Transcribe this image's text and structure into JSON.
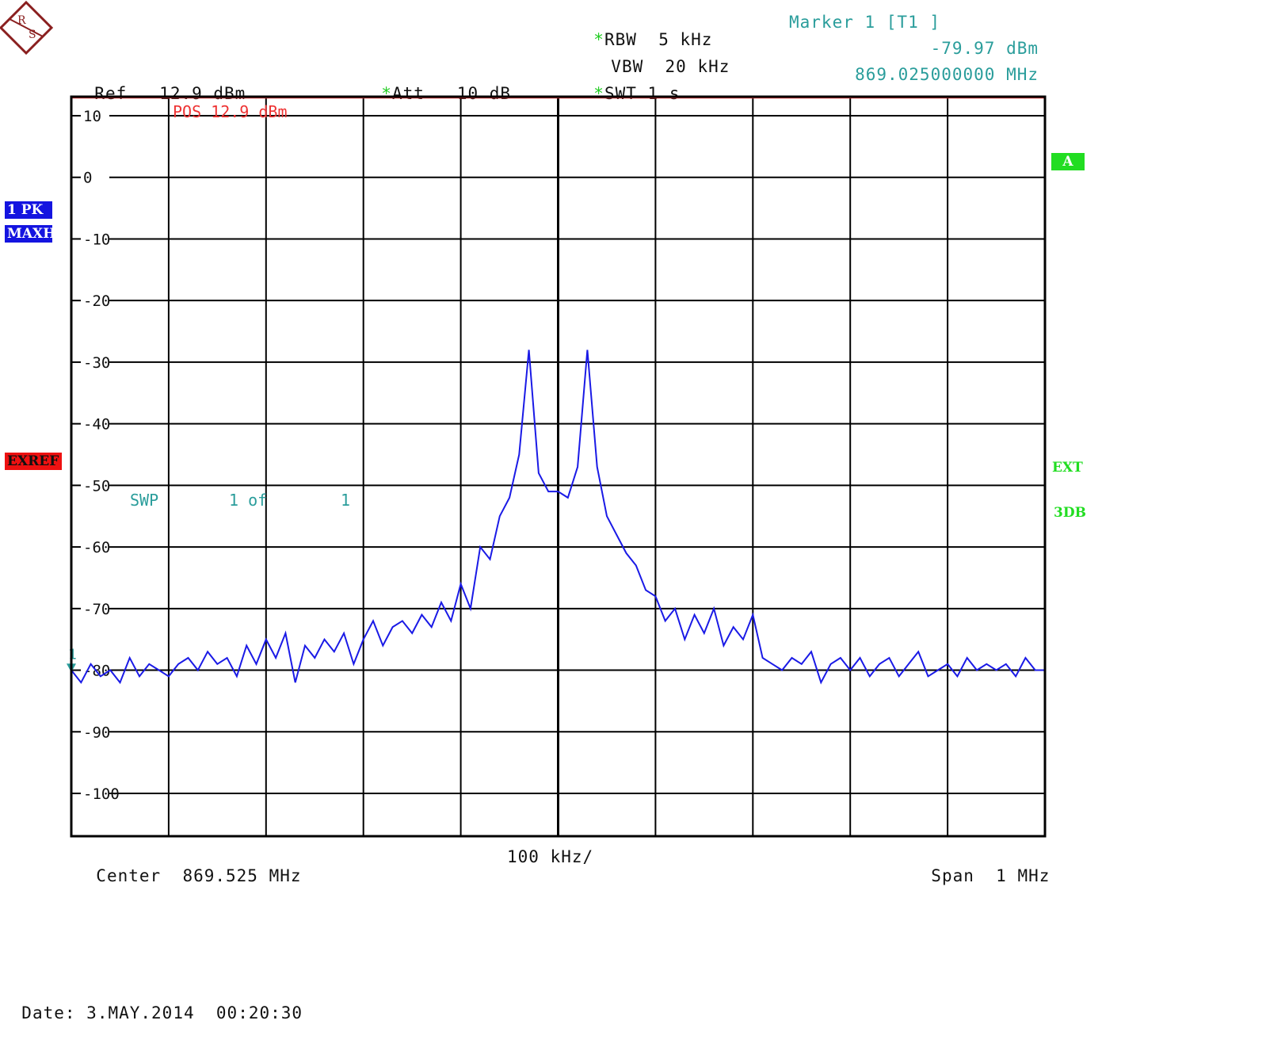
{
  "header": {
    "rbw_label": "RBW",
    "rbw_value": "5 kHz",
    "vbw_label": "VBW",
    "vbw_value": "20 kHz",
    "swt_label": "SWT",
    "swt_value": "1 s",
    "ref_label": "Ref",
    "ref_value": "12.9 dBm",
    "att_label": "Att",
    "att_value": "10 dB",
    "marker_title": "Marker 1 [T1 ]",
    "marker_level": "-79.97 dBm",
    "marker_freq": "869.025000000 MHz"
  },
  "side_labels": {
    "trace_detector": "1 PK",
    "trace_mode": "MAXH",
    "exref": "EXREF",
    "trace_a": "A",
    "ext": "EXT",
    "db3": "3DB"
  },
  "plot_annotations": {
    "pos_line": "POS 12.9 dBm",
    "sweep_label": "SWP",
    "sweep_count": "1 of",
    "sweep_total": "1",
    "marker_number": "1"
  },
  "footer": {
    "center_label": "Center",
    "center_value": "869.525 MHz",
    "div_value": "100 kHz/",
    "span_label": "Span",
    "span_value": "1 MHz",
    "date_label": "Date:",
    "date_value": "3.MAY.2014",
    "time_value": "00:20:30"
  },
  "colors": {
    "trace": "#1a1ae6",
    "grid": "#000000",
    "pos_line": "#ee3333",
    "marker": "#2a9d9b",
    "annotation": "#2a9d9b"
  },
  "chart_data": {
    "type": "line",
    "x_unit": "MHz",
    "y_unit": "dBm",
    "xlim": [
      869.025,
      870.025
    ],
    "ylim": [
      -108,
      13
    ],
    "y_ticks": [
      10,
      0,
      -10,
      -20,
      -30,
      -40,
      -50,
      -60,
      -70,
      -80,
      -90,
      -100
    ],
    "x_divisions": 10,
    "grid": true,
    "ref_level": 12.9,
    "marker": {
      "x": 869.025,
      "y": -79.97
    },
    "series": [
      {
        "x": [
          869.025,
          869.035,
          869.045,
          869.055,
          869.065,
          869.075,
          869.085,
          869.095,
          869.105,
          869.115,
          869.125,
          869.135,
          869.145,
          869.155,
          869.165,
          869.175,
          869.185,
          869.195,
          869.205,
          869.215,
          869.225,
          869.235,
          869.245,
          869.255,
          869.265,
          869.275,
          869.285,
          869.295,
          869.305,
          869.315,
          869.325,
          869.335,
          869.345,
          869.355,
          869.365,
          869.375,
          869.385,
          869.395,
          869.405,
          869.415,
          869.425,
          869.435,
          869.445,
          869.455,
          869.465,
          869.475,
          869.485,
          869.495,
          869.505,
          869.515,
          869.525,
          869.535,
          869.545,
          869.555,
          869.565,
          869.575,
          869.585,
          869.595,
          869.605,
          869.615,
          869.625,
          869.635,
          869.645,
          869.655,
          869.665,
          869.675,
          869.685,
          869.695,
          869.705,
          869.715,
          869.725,
          869.735,
          869.745,
          869.755,
          869.765,
          869.775,
          869.785,
          869.795,
          869.805,
          869.815,
          869.825,
          869.835,
          869.845,
          869.855,
          869.865,
          869.875,
          869.885,
          869.895,
          869.905,
          869.915,
          869.925,
          869.935,
          869.945,
          869.955,
          869.965,
          869.975,
          869.985,
          869.995,
          870.005,
          870.015,
          870.025
        ],
        "y": [
          -80,
          -82,
          -79,
          -81,
          -80,
          -82,
          -78,
          -81,
          -79,
          -80,
          -81,
          -79,
          -78,
          -80,
          -77,
          -79,
          -78,
          -81,
          -76,
          -79,
          -75,
          -78,
          -74,
          -82,
          -76,
          -78,
          -75,
          -77,
          -74,
          -79,
          -75,
          -72,
          -76,
          -73,
          -72,
          -74,
          -71,
          -73,
          -69,
          -72,
          -66,
          -70,
          -60,
          -62,
          -55,
          -52,
          -45,
          -28,
          -48,
          -51,
          -51,
          -52,
          -47,
          -28,
          -47,
          -55,
          -58,
          -61,
          -63,
          -67,
          -68,
          -72,
          -70,
          -75,
          -71,
          -74,
          -70,
          -76,
          -73,
          -75,
          -71,
          -78,
          -79,
          -80,
          -78,
          -79,
          -77,
          -82,
          -79,
          -78,
          -80,
          -78,
          -81,
          -79,
          -78,
          -81,
          -79,
          -77,
          -81,
          -80,
          -79,
          -81,
          -78,
          -80,
          -79,
          -80,
          -79,
          -81,
          -78,
          -80,
          -80
        ]
      }
    ]
  }
}
